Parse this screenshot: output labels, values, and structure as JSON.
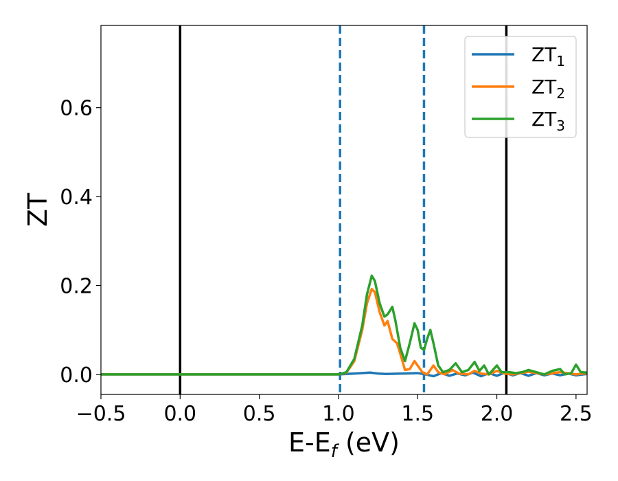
{
  "chart_data": {
    "type": "line",
    "xlabel_main": "E-E",
    "xlabel_sub": "f",
    "xlabel_unit": " (eV)",
    "ylabel": "ZT",
    "xlim": [
      -0.5,
      2.57
    ],
    "ylim": [
      -0.045,
      0.785
    ],
    "x_ticks": [
      -0.5,
      0.0,
      0.5,
      1.0,
      1.5,
      2.0,
      2.5
    ],
    "x_tick_labels": [
      "−0.5",
      "0.0",
      "0.5",
      "1.0",
      "1.5",
      "2.0",
      "2.5"
    ],
    "y_ticks": [
      0.0,
      0.2,
      0.4,
      0.6
    ],
    "y_tick_labels": [
      "0.0",
      "0.2",
      "0.4",
      "0.6"
    ],
    "grid": false,
    "legend_position": "top-right",
    "vertical_lines": [
      {
        "x": 0.0,
        "style": "solid",
        "color": "#000000"
      },
      {
        "x": 2.06,
        "style": "solid",
        "color": "#000000"
      },
      {
        "x": 1.01,
        "style": "dashed",
        "color": "#1f77b4"
      },
      {
        "x": 1.54,
        "style": "dashed",
        "color": "#1f77b4"
      }
    ],
    "series": [
      {
        "name_main": "ZT",
        "name_sub": "1",
        "color": "#1f77b4",
        "points": [
          [
            -0.5,
            0
          ],
          [
            0.95,
            0
          ],
          [
            1.0,
            0.0
          ],
          [
            1.1,
            0.002
          ],
          [
            1.2,
            0.004
          ],
          [
            1.25,
            0.002
          ],
          [
            1.3,
            0.001
          ],
          [
            1.4,
            0.002
          ],
          [
            1.5,
            0.003
          ],
          [
            1.55,
            0.0
          ],
          [
            1.6,
            -0.004
          ],
          [
            1.65,
            0.003
          ],
          [
            1.7,
            -0.003
          ],
          [
            1.75,
            0.002
          ],
          [
            1.8,
            -0.002
          ],
          [
            1.85,
            0.004
          ],
          [
            1.9,
            -0.004
          ],
          [
            1.95,
            0.003
          ],
          [
            2.0,
            -0.003
          ],
          [
            2.05,
            0.004
          ],
          [
            2.1,
            -0.002
          ],
          [
            2.15,
            0.003
          ],
          [
            2.2,
            -0.003
          ],
          [
            2.25,
            0.003
          ],
          [
            2.3,
            -0.002
          ],
          [
            2.35,
            0.002
          ],
          [
            2.4,
            -0.002
          ],
          [
            2.45,
            0.002
          ],
          [
            2.5,
            -0.002
          ],
          [
            2.57,
            0.001
          ]
        ]
      },
      {
        "name_main": "ZT",
        "name_sub": "2",
        "color": "#ff7f0e",
        "points": [
          [
            -0.5,
            0
          ],
          [
            1.0,
            0
          ],
          [
            1.05,
            0.004
          ],
          [
            1.1,
            0.03
          ],
          [
            1.15,
            0.1
          ],
          [
            1.18,
            0.16
          ],
          [
            1.21,
            0.192
          ],
          [
            1.23,
            0.185
          ],
          [
            1.26,
            0.14
          ],
          [
            1.29,
            0.11
          ],
          [
            1.31,
            0.12
          ],
          [
            1.34,
            0.08
          ],
          [
            1.37,
            0.07
          ],
          [
            1.4,
            0.035
          ],
          [
            1.42,
            0.01
          ],
          [
            1.45,
            0.012
          ],
          [
            1.48,
            0.03
          ],
          [
            1.51,
            0.015
          ],
          [
            1.53,
            0.005
          ],
          [
            1.56,
            0.0
          ],
          [
            1.6,
            0.02
          ],
          [
            1.63,
            0.005
          ],
          [
            1.67,
            0.0
          ],
          [
            1.72,
            0.01
          ],
          [
            1.76,
            0.002
          ],
          [
            1.82,
            0.0
          ],
          [
            1.86,
            0.008
          ],
          [
            1.9,
            0.002
          ],
          [
            1.95,
            0.0
          ],
          [
            2.0,
            0.008
          ],
          [
            2.05,
            0.002
          ],
          [
            2.1,
            0.0
          ],
          [
            2.2,
            0.006
          ],
          [
            2.3,
            0.0
          ],
          [
            2.4,
            0.005
          ],
          [
            2.5,
            0.0
          ],
          [
            2.57,
            0.003
          ]
        ]
      },
      {
        "name_main": "ZT",
        "name_sub": "3",
        "color": "#2ca02c",
        "points": [
          [
            -0.5,
            0
          ],
          [
            1.0,
            0
          ],
          [
            1.05,
            0.005
          ],
          [
            1.1,
            0.035
          ],
          [
            1.15,
            0.11
          ],
          [
            1.18,
            0.18
          ],
          [
            1.21,
            0.222
          ],
          [
            1.23,
            0.21
          ],
          [
            1.26,
            0.16
          ],
          [
            1.29,
            0.13
          ],
          [
            1.31,
            0.135
          ],
          [
            1.34,
            0.152
          ],
          [
            1.36,
            0.12
          ],
          [
            1.39,
            0.06
          ],
          [
            1.42,
            0.03
          ],
          [
            1.45,
            0.07
          ],
          [
            1.48,
            0.115
          ],
          [
            1.5,
            0.1
          ],
          [
            1.52,
            0.06
          ],
          [
            1.54,
            0.055
          ],
          [
            1.56,
            0.08
          ],
          [
            1.58,
            0.1
          ],
          [
            1.6,
            0.07
          ],
          [
            1.63,
            0.02
          ],
          [
            1.66,
            0.005
          ],
          [
            1.7,
            0.01
          ],
          [
            1.74,
            0.025
          ],
          [
            1.78,
            0.005
          ],
          [
            1.82,
            0.01
          ],
          [
            1.86,
            0.028
          ],
          [
            1.89,
            0.008
          ],
          [
            1.92,
            0.02
          ],
          [
            1.95,
            0.0
          ],
          [
            2.0,
            0.02
          ],
          [
            2.03,
            0.005
          ],
          [
            2.08,
            0.005
          ],
          [
            2.12,
            0.003
          ],
          [
            2.16,
            0.005
          ],
          [
            2.2,
            0.01
          ],
          [
            2.25,
            0.005
          ],
          [
            2.3,
            0.0
          ],
          [
            2.35,
            0.008
          ],
          [
            2.4,
            0.012
          ],
          [
            2.43,
            0.0
          ],
          [
            2.47,
            0.003
          ],
          [
            2.5,
            0.022
          ],
          [
            2.53,
            0.005
          ],
          [
            2.57,
            0.004
          ]
        ]
      }
    ]
  }
}
